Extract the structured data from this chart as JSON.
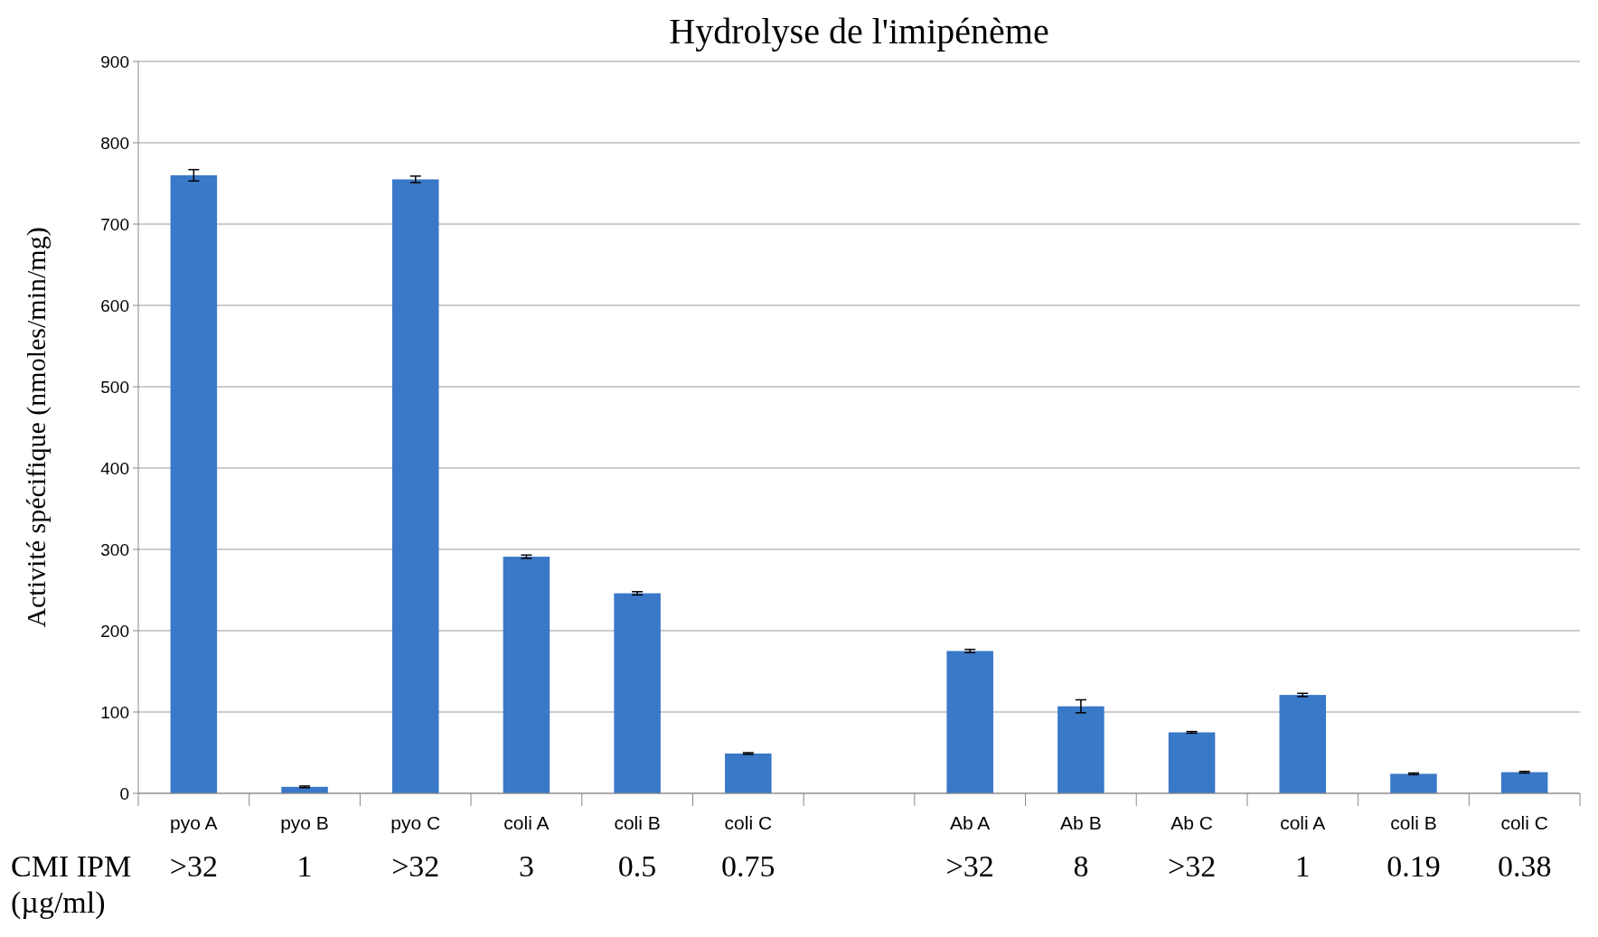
{
  "chart_data": {
    "type": "bar",
    "title": "Hydrolyse de l'imipénème",
    "ylabel": "Activité spécifique (nmoles/min/mg)",
    "categories": [
      "pyo A",
      "pyo B",
      "pyo C",
      "coli A",
      "coli B",
      "coli C",
      null,
      "Ab A",
      "Ab B",
      "Ab C",
      "coli A",
      "coli B",
      "coli C"
    ],
    "values": [
      760,
      8,
      755,
      291,
      246,
      49,
      null,
      175,
      107,
      75,
      121,
      24,
      26
    ],
    "errors": [
      7,
      1,
      4,
      2,
      2,
      1,
      null,
      2,
      8,
      1,
      2,
      1,
      1
    ],
    "color": "#3a78c8",
    "ylim": [
      0,
      900
    ],
    "yticks": [
      0,
      100,
      200,
      300,
      400,
      500,
      600,
      700,
      800,
      900
    ],
    "grid": "y",
    "annotations": [
      "CMI IPM (µg/ml)",
      ">32",
      "1",
      ">32",
      "3",
      "0.5",
      "0.75",
      ">32",
      "8",
      ">32",
      "1",
      "0.19",
      "0.38"
    ]
  }
}
